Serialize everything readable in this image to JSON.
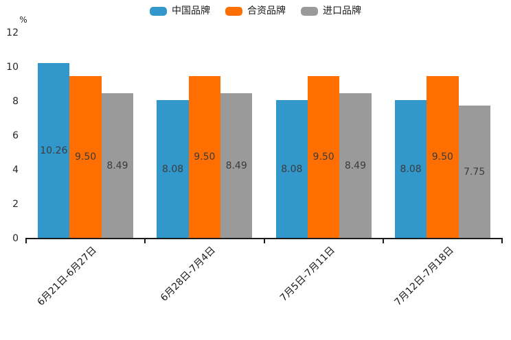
{
  "chart_data": {
    "type": "bar",
    "title": "",
    "ylabel": "%",
    "xlabel": "",
    "categories": [
      "6月21日-6月27日",
      "6月28日-7月4日",
      "7月5日-7月11日",
      "7月12日-7月18日"
    ],
    "series": [
      {
        "name": "中国品牌",
        "color": "#3298CB",
        "values": [
          10.26,
          8.08,
          8.08,
          8.08
        ]
      },
      {
        "name": "合资品牌",
        "color": "#FF6E00",
        "values": [
          9.5,
          9.5,
          9.5,
          9.5
        ]
      },
      {
        "name": "进口品牌",
        "color": "#9A9A9A",
        "values": [
          8.49,
          8.49,
          8.49,
          7.75
        ]
      }
    ],
    "value_labels": [
      [
        "10.26",
        "8.08",
        "8.08",
        "8.08"
      ],
      [
        "9.50",
        "9.50",
        "9.50",
        "9.50"
      ],
      [
        "8.49",
        "8.49",
        "8.49",
        "7.75"
      ]
    ],
    "yticks": [
      "0",
      "2",
      "4",
      "6",
      "8",
      "10",
      "12"
    ],
    "ylim": [
      0,
      12
    ],
    "grid": false,
    "legend_position": "top-center",
    "xtick_rotation_deg": 45
  }
}
